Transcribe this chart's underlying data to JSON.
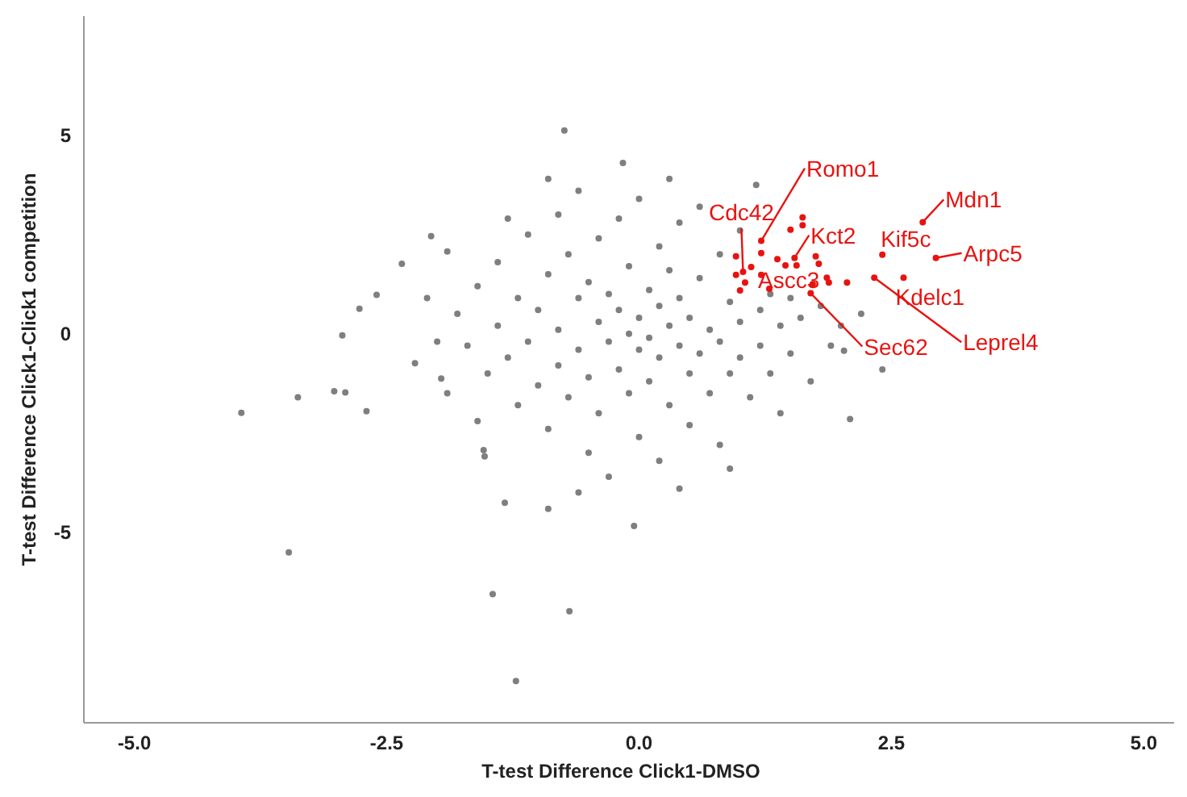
{
  "chart_data": {
    "type": "scatter",
    "xlabel": "T-test Difference Click1-DMSO",
    "ylabel": "T-test Difference Click1-Click1 competition",
    "xlim": [
      -5.5,
      5.3
    ],
    "ylim": [
      -9.8,
      8.0
    ],
    "xticks": [
      {
        "value": -5,
        "label": "-5.0"
      },
      {
        "value": -2.5,
        "label": "-2.5"
      },
      {
        "value": 0,
        "label": "0.0"
      },
      {
        "value": 2.5,
        "label": "2.5"
      },
      {
        "value": 5,
        "label": "5.0"
      }
    ],
    "yticks": [
      -5,
      0,
      5
    ],
    "grid": false,
    "legend": false,
    "marker": "circle",
    "series": [
      {
        "color": "#7f7f7f",
        "x": [
          -3.94,
          -3.38,
          -3.47,
          -2.94,
          -3.02,
          -2.91,
          -2.77,
          -2.6,
          -2.7,
          -2.35,
          -2.22,
          -1.96,
          -1.54,
          -1.53,
          -1.33,
          -1.45,
          -1.22,
          -0.69,
          -0.9,
          -0.74,
          -0.05,
          -0.16,
          1.16,
          2.09,
          2.41,
          2.03,
          -1.9,
          -2.06,
          -1.8,
          -1.7,
          -1.6,
          -1.5,
          -1.4,
          -1.4,
          -1.3,
          -1.2,
          -1.2,
          -1.1,
          -1.1,
          -1.0,
          -1.0,
          -0.9,
          -0.9,
          -0.8,
          -0.8,
          -0.8,
          -0.7,
          -0.7,
          -0.6,
          -0.6,
          -0.6,
          -0.5,
          -0.5,
          -0.5,
          -0.4,
          -0.4,
          -0.4,
          -0.3,
          -0.3,
          -0.3,
          -0.2,
          -0.2,
          -0.2,
          -0.1,
          -0.1,
          -0.1,
          0.0,
          0.0,
          0.0,
          0.0,
          0.1,
          0.1,
          0.1,
          0.2,
          0.2,
          0.2,
          0.2,
          0.3,
          0.3,
          0.3,
          0.4,
          0.4,
          0.4,
          0.5,
          0.5,
          0.5,
          0.6,
          0.6,
          0.6,
          0.7,
          0.7,
          0.8,
          0.8,
          0.8,
          0.9,
          0.9,
          1.0,
          1.0,
          1.0,
          1.1,
          1.2,
          1.2,
          1.3,
          1.3,
          1.4,
          1.4,
          1.5,
          1.5,
          1.6,
          1.7,
          1.8,
          1.9,
          2.0,
          2.2,
          -2.0,
          -2.1,
          -1.9,
          -1.6,
          -1.3,
          0.9,
          -0.6,
          0.4,
          -0.9,
          0.3
        ],
        "values": [
          -1.99,
          -1.6,
          -5.51,
          -0.04,
          -1.45,
          -1.48,
          0.63,
          0.98,
          -1.95,
          1.76,
          -0.74,
          -1.13,
          -2.93,
          -3.09,
          -4.26,
          -6.56,
          -8.75,
          -6.99,
          -4.41,
          5.12,
          -4.84,
          4.3,
          3.75,
          -2.15,
          -0.9,
          -0.43,
          2.07,
          2.46,
          0.5,
          -0.3,
          1.2,
          -1.0,
          0.2,
          1.8,
          -0.6,
          0.9,
          -1.8,
          2.5,
          -0.2,
          0.6,
          -1.3,
          1.5,
          -2.4,
          0.1,
          3.0,
          -0.8,
          2.0,
          -1.6,
          0.9,
          -0.4,
          3.6,
          1.3,
          -1.1,
          -3.0,
          0.3,
          2.4,
          -2.0,
          -0.2,
          1.0,
          -3.6,
          0.6,
          -0.9,
          2.9,
          0.0,
          1.7,
          -1.5,
          0.4,
          -0.4,
          -2.6,
          3.4,
          1.1,
          -0.1,
          -1.2,
          0.7,
          2.2,
          -0.6,
          -3.2,
          0.2,
          -1.8,
          1.6,
          -0.3,
          2.8,
          0.9,
          -1.0,
          0.4,
          -2.3,
          1.4,
          -0.5,
          3.2,
          0.1,
          -1.5,
          2.0,
          -0.2,
          -2.8,
          0.8,
          -1.0,
          0.3,
          2.6,
          -0.6,
          -1.6,
          0.6,
          -0.3,
          1.0,
          -1.0,
          0.2,
          -2.0,
          0.9,
          -0.5,
          0.4,
          -1.2,
          0.7,
          -0.3,
          0.2,
          0.5,
          -0.2,
          0.9,
          -1.5,
          -2.2,
          2.9,
          -3.4,
          -4.0,
          -3.9,
          3.9,
          3.9
        ]
      },
      {
        "color": "#e8130f",
        "x": [
          2.81,
          2.94,
          2.41,
          2.62,
          2.33,
          1.21,
          1.03,
          1.54,
          1.7,
          1.21,
          1.62,
          1.62,
          1.5,
          1.21,
          0.96,
          1.37,
          1.45,
          1.56,
          1.75,
          1.78,
          0.96,
          1.05,
          1.0,
          1.29,
          1.72,
          1.86,
          1.88,
          2.06,
          1.11
        ],
        "values": [
          2.81,
          1.91,
          1.99,
          1.41,
          1.41,
          2.34,
          1.56,
          1.91,
          1.02,
          1.48,
          2.93,
          2.73,
          2.62,
          2.03,
          1.95,
          1.88,
          1.72,
          1.72,
          1.95,
          1.76,
          1.48,
          1.29,
          1.09,
          1.13,
          1.25,
          1.41,
          1.29,
          1.29,
          1.68
        ]
      }
    ],
    "annotations": [
      {
        "text": "Romo1",
        "x": 1.21,
        "y": 2.34
      },
      {
        "text": "Cdc42",
        "x": 1.03,
        "y": 1.56
      },
      {
        "text": "Kct2",
        "x": 1.54,
        "y": 1.91
      },
      {
        "text": "Ascc3",
        "x": 1.21,
        "y": 1.48
      },
      {
        "text": "Sec62",
        "x": 1.7,
        "y": 1.02
      },
      {
        "text": "Mdn1",
        "x": 2.81,
        "y": 2.81
      },
      {
        "text": "Kif5c",
        "x": 2.41,
        "y": 1.99
      },
      {
        "text": "Arpc5",
        "x": 2.94,
        "y": 1.91
      },
      {
        "text": "Kdelc1",
        "x": 2.62,
        "y": 1.41
      },
      {
        "text": "Leprel4",
        "x": 2.33,
        "y": 1.41
      }
    ]
  }
}
